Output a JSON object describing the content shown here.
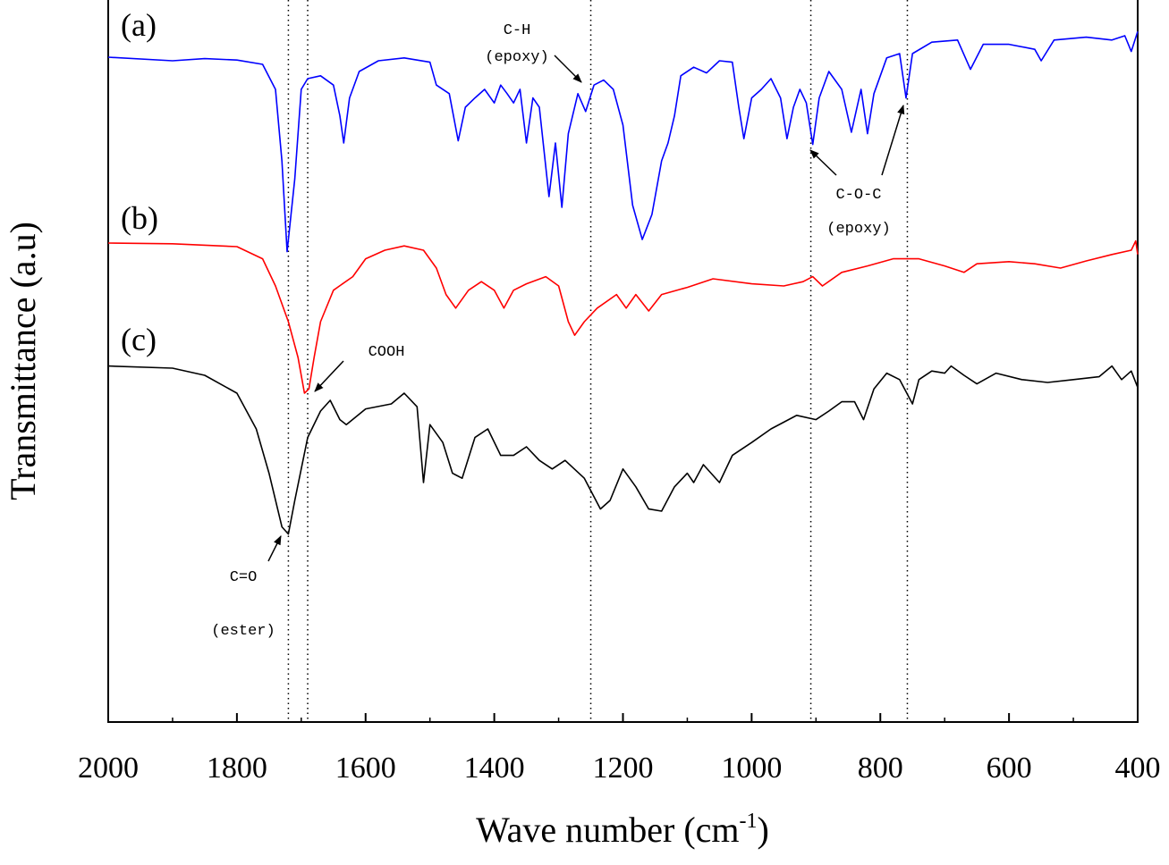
{
  "chart_data": {
    "type": "line",
    "x_label": {
      "text": "Wave number (cm",
      "superscript": "-1",
      "suffix": ")"
    },
    "y_label": "Transmittance (a.u)",
    "xlim": [
      2000,
      400
    ],
    "ylim": [
      0,
      100
    ],
    "xticks": [
      2000,
      1800,
      1600,
      1400,
      1200,
      1000,
      800,
      600,
      400
    ],
    "reference_lines": [
      1720,
      1690,
      1250,
      908,
      758
    ],
    "annotations": [
      "C-H",
      "(epoxy)",
      "C-O-C",
      "(epoxy)",
      "COOH",
      "C=O",
      "(ester)"
    ],
    "series": [
      {
        "name": "(a)",
        "color": "#0000ff",
        "x": [
          2000,
          1900,
          1850,
          1800,
          1760,
          1740,
          1730,
          1722,
          1710,
          1700,
          1690,
          1670,
          1650,
          1640,
          1634,
          1625,
          1610,
          1580,
          1540,
          1500,
          1490,
          1470,
          1456,
          1445,
          1430,
          1415,
          1400,
          1390,
          1380,
          1370,
          1360,
          1350,
          1340,
          1330,
          1315,
          1305,
          1295,
          1285,
          1270,
          1258,
          1245,
          1230,
          1215,
          1200,
          1185,
          1170,
          1155,
          1140,
          1130,
          1120,
          1110,
          1090,
          1070,
          1050,
          1030,
          1020,
          1012,
          1000,
          985,
          970,
          955,
          945,
          935,
          925,
          915,
          905,
          895,
          880,
          860,
          845,
          830,
          820,
          810,
          790,
          770,
          760,
          750,
          720,
          680,
          660,
          640,
          600,
          560,
          550,
          530,
          480,
          440,
          420,
          410,
          400
        ],
        "values": [
          93.0,
          92.5,
          92.8,
          92.6,
          92.0,
          88.5,
          78.5,
          65.8,
          76.0,
          88.5,
          90.0,
          90.4,
          89.1,
          84.8,
          81.0,
          87.3,
          91.0,
          92.5,
          92.9,
          92.3,
          89.1,
          87.9,
          81.3,
          86.0,
          87.3,
          88.5,
          86.6,
          89.1,
          87.9,
          86.6,
          88.5,
          81.0,
          87.3,
          86.0,
          73.5,
          81.0,
          72.0,
          82.3,
          87.9,
          85.4,
          89.1,
          89.8,
          88.5,
          83.5,
          72.3,
          67.5,
          71.0,
          78.5,
          81.0,
          84.8,
          90.4,
          91.6,
          90.8,
          92.5,
          92.3,
          86.0,
          81.6,
          87.3,
          88.5,
          90.0,
          87.3,
          81.6,
          86.0,
          88.5,
          86.6,
          80.8,
          87.3,
          91.0,
          88.5,
          82.5,
          88.5,
          82.3,
          87.9,
          92.9,
          93.5,
          87.3,
          93.5,
          95.1,
          95.4,
          91.3,
          94.8,
          94.8,
          94.1,
          92.5,
          95.4,
          95.8,
          95.4,
          96.0,
          93.8,
          96.6
        ]
      },
      {
        "name": "(b)",
        "color": "#ff0000",
        "x": [
          2000,
          1900,
          1800,
          1760,
          1740,
          1720,
          1705,
          1695,
          1688,
          1680,
          1670,
          1650,
          1620,
          1600,
          1570,
          1540,
          1510,
          1490,
          1475,
          1460,
          1440,
          1420,
          1400,
          1385,
          1370,
          1350,
          1320,
          1300,
          1285,
          1275,
          1260,
          1240,
          1210,
          1195,
          1180,
          1160,
          1140,
          1100,
          1060,
          1000,
          950,
          920,
          905,
          890,
          860,
          820,
          780,
          740,
          700,
          670,
          650,
          600,
          560,
          520,
          480,
          440,
          410,
          403,
          400
        ],
        "values": [
          67.0,
          66.9,
          66.5,
          64.8,
          61.0,
          56.0,
          51.0,
          46.0,
          46.6,
          51.0,
          56.0,
          60.4,
          62.3,
          64.8,
          66.0,
          66.6,
          66.0,
          63.5,
          59.8,
          57.9,
          60.4,
          61.6,
          60.4,
          57.9,
          60.4,
          61.3,
          62.3,
          61.0,
          56.0,
          54.1,
          56.0,
          57.9,
          59.8,
          57.9,
          59.8,
          57.5,
          59.8,
          60.8,
          62.0,
          61.3,
          61.0,
          61.6,
          62.3,
          61.0,
          62.9,
          63.8,
          64.8,
          64.8,
          63.8,
          62.9,
          64.1,
          64.4,
          64.1,
          63.5,
          64.5,
          65.4,
          66.0,
          67.3,
          65.4
        ]
      },
      {
        "name": "(c)",
        "color": "#000000",
        "x": [
          2000,
          1900,
          1850,
          1800,
          1770,
          1750,
          1730,
          1720,
          1710,
          1690,
          1670,
          1655,
          1640,
          1630,
          1600,
          1560,
          1540,
          1520,
          1510,
          1500,
          1480,
          1465,
          1450,
          1430,
          1410,
          1390,
          1370,
          1350,
          1330,
          1310,
          1290,
          1260,
          1235,
          1220,
          1200,
          1180,
          1160,
          1140,
          1120,
          1100,
          1090,
          1075,
          1050,
          1030,
          1000,
          970,
          930,
          900,
          880,
          860,
          840,
          826,
          810,
          790,
          770,
          750,
          740,
          720,
          700,
          690,
          670,
          650,
          620,
          580,
          540,
          500,
          460,
          440,
          425,
          410,
          400
        ],
        "values": [
          49.8,
          49.5,
          48.5,
          46.0,
          41.0,
          34.8,
          27.3,
          26.3,
          31.0,
          39.8,
          43.5,
          45.0,
          42.3,
          41.6,
          43.8,
          44.5,
          46.0,
          44.1,
          33.5,
          41.6,
          39.1,
          34.8,
          34.1,
          39.8,
          41.0,
          37.3,
          37.3,
          38.5,
          36.6,
          35.4,
          36.6,
          34.1,
          29.8,
          31.0,
          35.4,
          32.9,
          29.8,
          29.5,
          32.9,
          34.8,
          33.5,
          36.0,
          33.5,
          37.3,
          39.1,
          41.0,
          42.9,
          42.3,
          43.5,
          44.8,
          44.8,
          42.3,
          46.6,
          48.8,
          47.9,
          44.5,
          47.9,
          49.1,
          48.8,
          49.8,
          48.5,
          47.3,
          48.8,
          47.9,
          47.5,
          47.9,
          48.3,
          49.8,
          47.9,
          49.1,
          46.8
        ]
      }
    ]
  }
}
